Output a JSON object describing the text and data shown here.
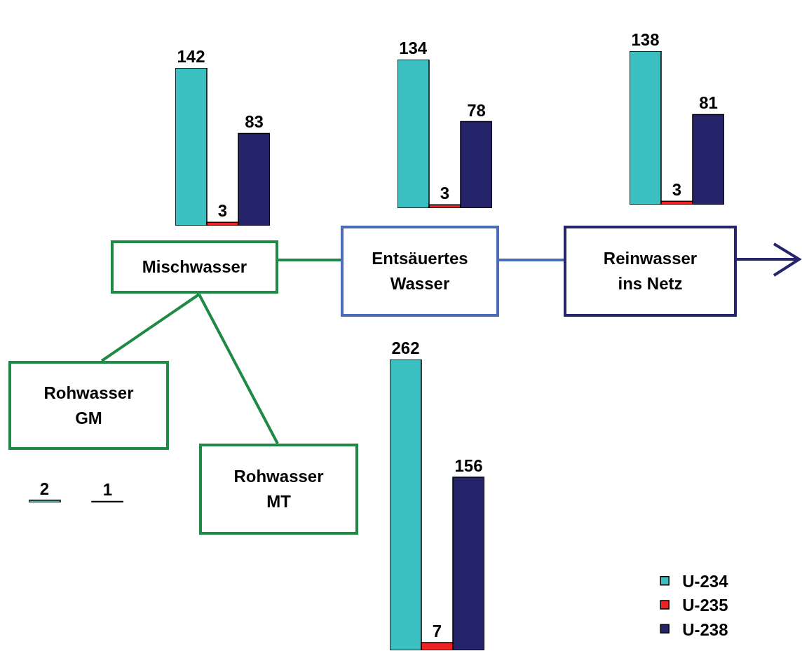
{
  "chart_data": [
    {
      "type": "bar",
      "categories": [
        null
      ],
      "tick_labels": false,
      "data_labels": true,
      "series": [
        {
          "color": "#3cbfc0",
          "values": [
            142
          ]
        },
        {
          "color": "#ee2222",
          "values": [
            3
          ]
        },
        {
          "color": "#25246b",
          "values": [
            83
          ]
        }
      ]
    },
    {
      "type": "bar",
      "categories": [
        null
      ],
      "tick_labels": false,
      "data_labels": true,
      "series": [
        {
          "color": "#3cbfc0",
          "values": [
            134
          ]
        },
        {
          "color": "#ee2222",
          "values": [
            3
          ]
        },
        {
          "color": "#25246b",
          "values": [
            78
          ]
        }
      ]
    },
    {
      "type": "bar",
      "categories": [
        null
      ],
      "tick_labels": false,
      "data_labels": true,
      "series": [
        {
          "color": "#3cbfc0",
          "values": [
            138
          ]
        },
        {
          "color": "#ee2222",
          "values": [
            3
          ]
        },
        {
          "color": "#25246b",
          "values": [
            81
          ]
        }
      ]
    },
    {
      "type": "other",
      "annotations": [
        "Mischwasser",
        "Entsäuertes\nWasser",
        "Reinwasser\nins Netz",
        "Rohwasser\nGM",
        "Rohwasser\nMT"
      ]
    },
    {
      "type": "bar",
      "categories": [
        null
      ],
      "tick_labels": false,
      "data_labels": true,
      "legend": "bottom right",
      "series": [
        {
          "name": "U-234",
          "color": "#3cbfc0",
          "values": [
            262
          ]
        },
        {
          "name": "U-235",
          "color": "#ee2222",
          "values": [
            7
          ]
        },
        {
          "name": "U-238",
          "color": "#25246b",
          "values": [
            156
          ]
        }
      ]
    },
    {
      "type": "bar",
      "categories": [
        null
      ],
      "tick_labels": false,
      "data_labels": true,
      "series": [
        {
          "color": "#3cbfc0",
          "values": [
            2
          ]
        },
        {
          "color": "#ee2222",
          "values": [
            null
          ]
        },
        {
          "color": "#111111",
          "values": [
            1
          ]
        }
      ]
    }
  ]
}
